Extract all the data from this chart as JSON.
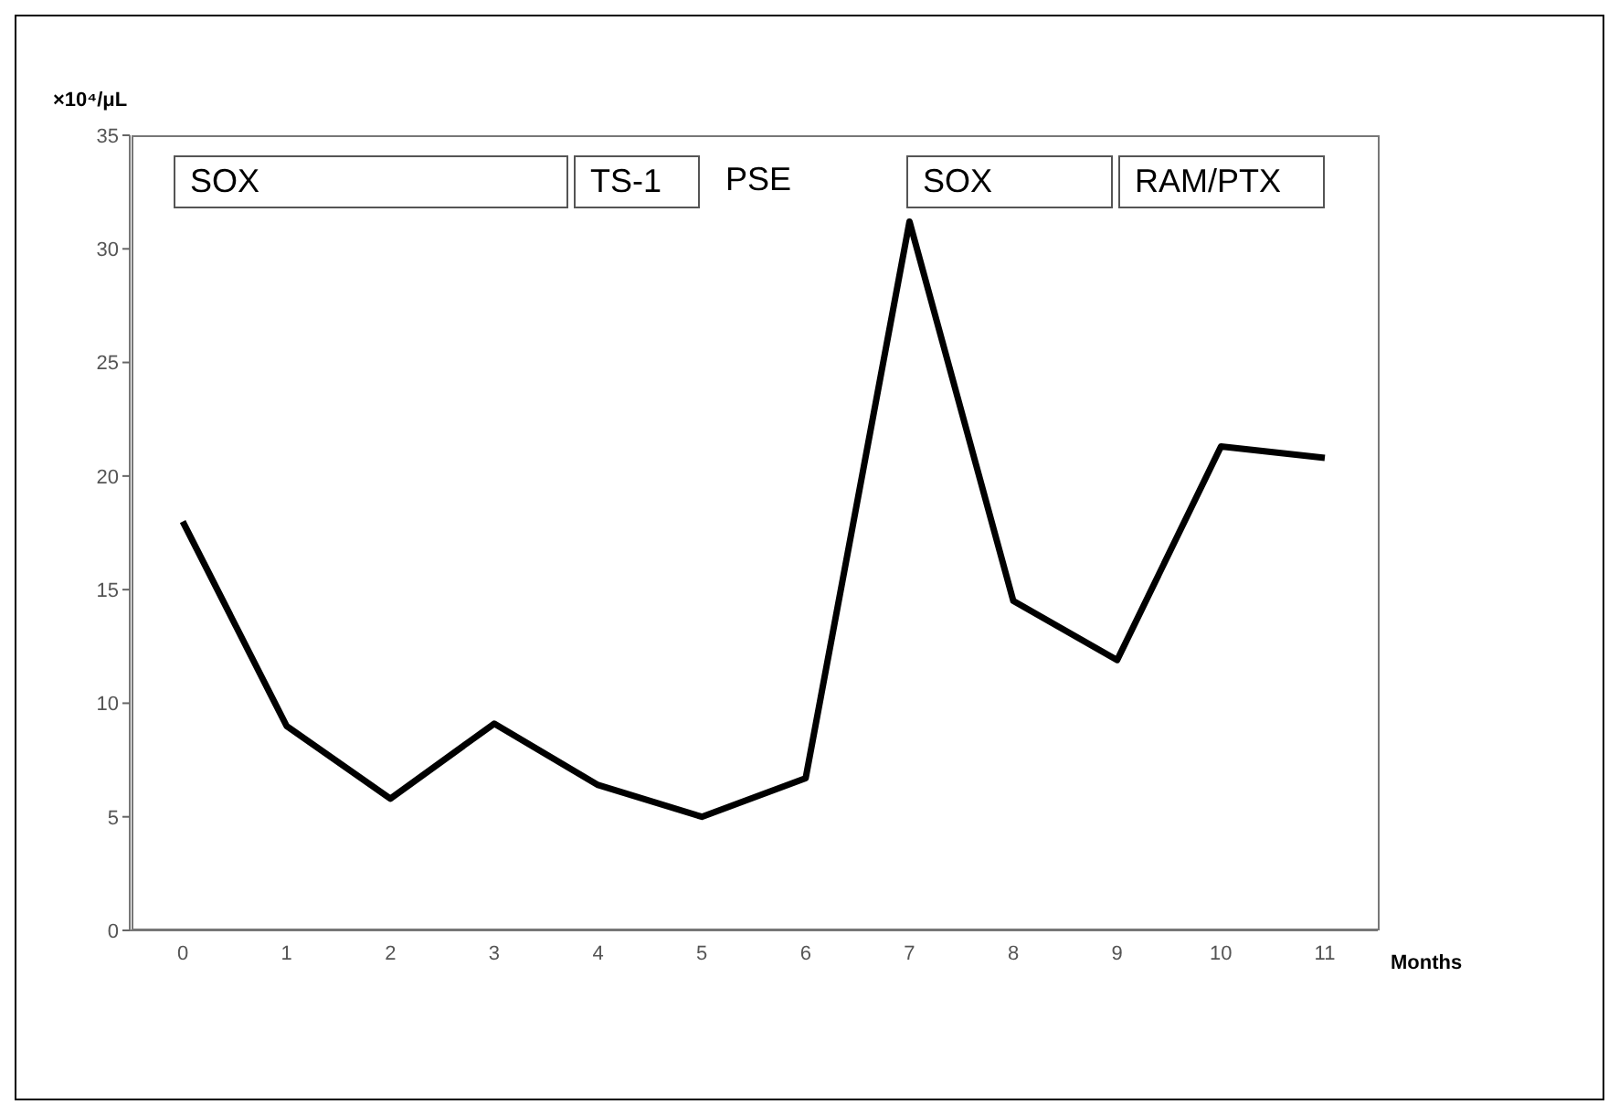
{
  "chart_data": {
    "type": "line",
    "ylabel": "×10⁴/μL",
    "xlabel": "Months",
    "categories": [
      "0",
      "1",
      "2",
      "3",
      "4",
      "5",
      "6",
      "7",
      "8",
      "9",
      "10",
      "11"
    ],
    "series": [
      {
        "color": "#000000",
        "values": [
          18,
          9,
          5.8,
          9.1,
          6.4,
          5,
          6.7,
          31.2,
          14.5,
          11.9,
          21.3,
          20.8
        ]
      }
    ],
    "ylim": [
      0,
      35
    ],
    "yticks": [
      0,
      5,
      10,
      15,
      20,
      25,
      30,
      35
    ],
    "marker": "none",
    "line_style": "solid",
    "annotations": [
      "SOX",
      "TS-1",
      "PSE",
      "SOX",
      "RAM/PTX"
    ]
  }
}
